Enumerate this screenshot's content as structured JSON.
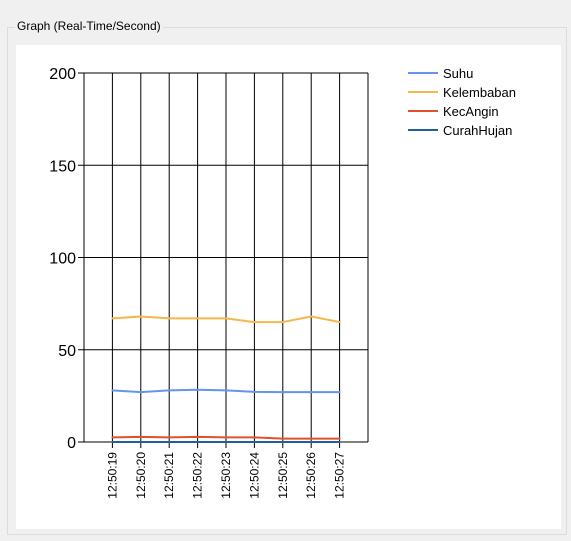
{
  "groupbox": {
    "title": "Graph (Real-Time/Second)"
  },
  "chart_data": {
    "type": "line",
    "x": [
      "12:50:19",
      "12:50:20",
      "12:50:21",
      "12:50:22",
      "12:50:23",
      "12:50:24",
      "12:50:25",
      "12:50:26",
      "12:50:27"
    ],
    "ylim": [
      0,
      200
    ],
    "yticks": [
      0,
      50,
      100,
      150,
      200
    ],
    "grid": true,
    "legend_position": "top-right",
    "series": [
      {
        "name": "Suhu",
        "color": "#6495ed",
        "values": [
          28,
          27,
          28,
          28.3,
          28,
          27.2,
          27,
          27,
          27
        ]
      },
      {
        "name": "Kelembaban",
        "color": "#f5b74a",
        "values": [
          67,
          68,
          67,
          67,
          67,
          65,
          65,
          68,
          65
        ]
      },
      {
        "name": "KecAngin",
        "color": "#e2512e",
        "values": [
          2.5,
          2.8,
          2.5,
          2.8,
          2.5,
          2.5,
          1.8,
          1.8,
          1.8
        ]
      },
      {
        "name": "CurahHujan",
        "color": "#1f5f9f",
        "values": [
          0,
          0,
          0,
          0,
          0,
          0,
          0,
          0,
          0
        ]
      }
    ]
  }
}
